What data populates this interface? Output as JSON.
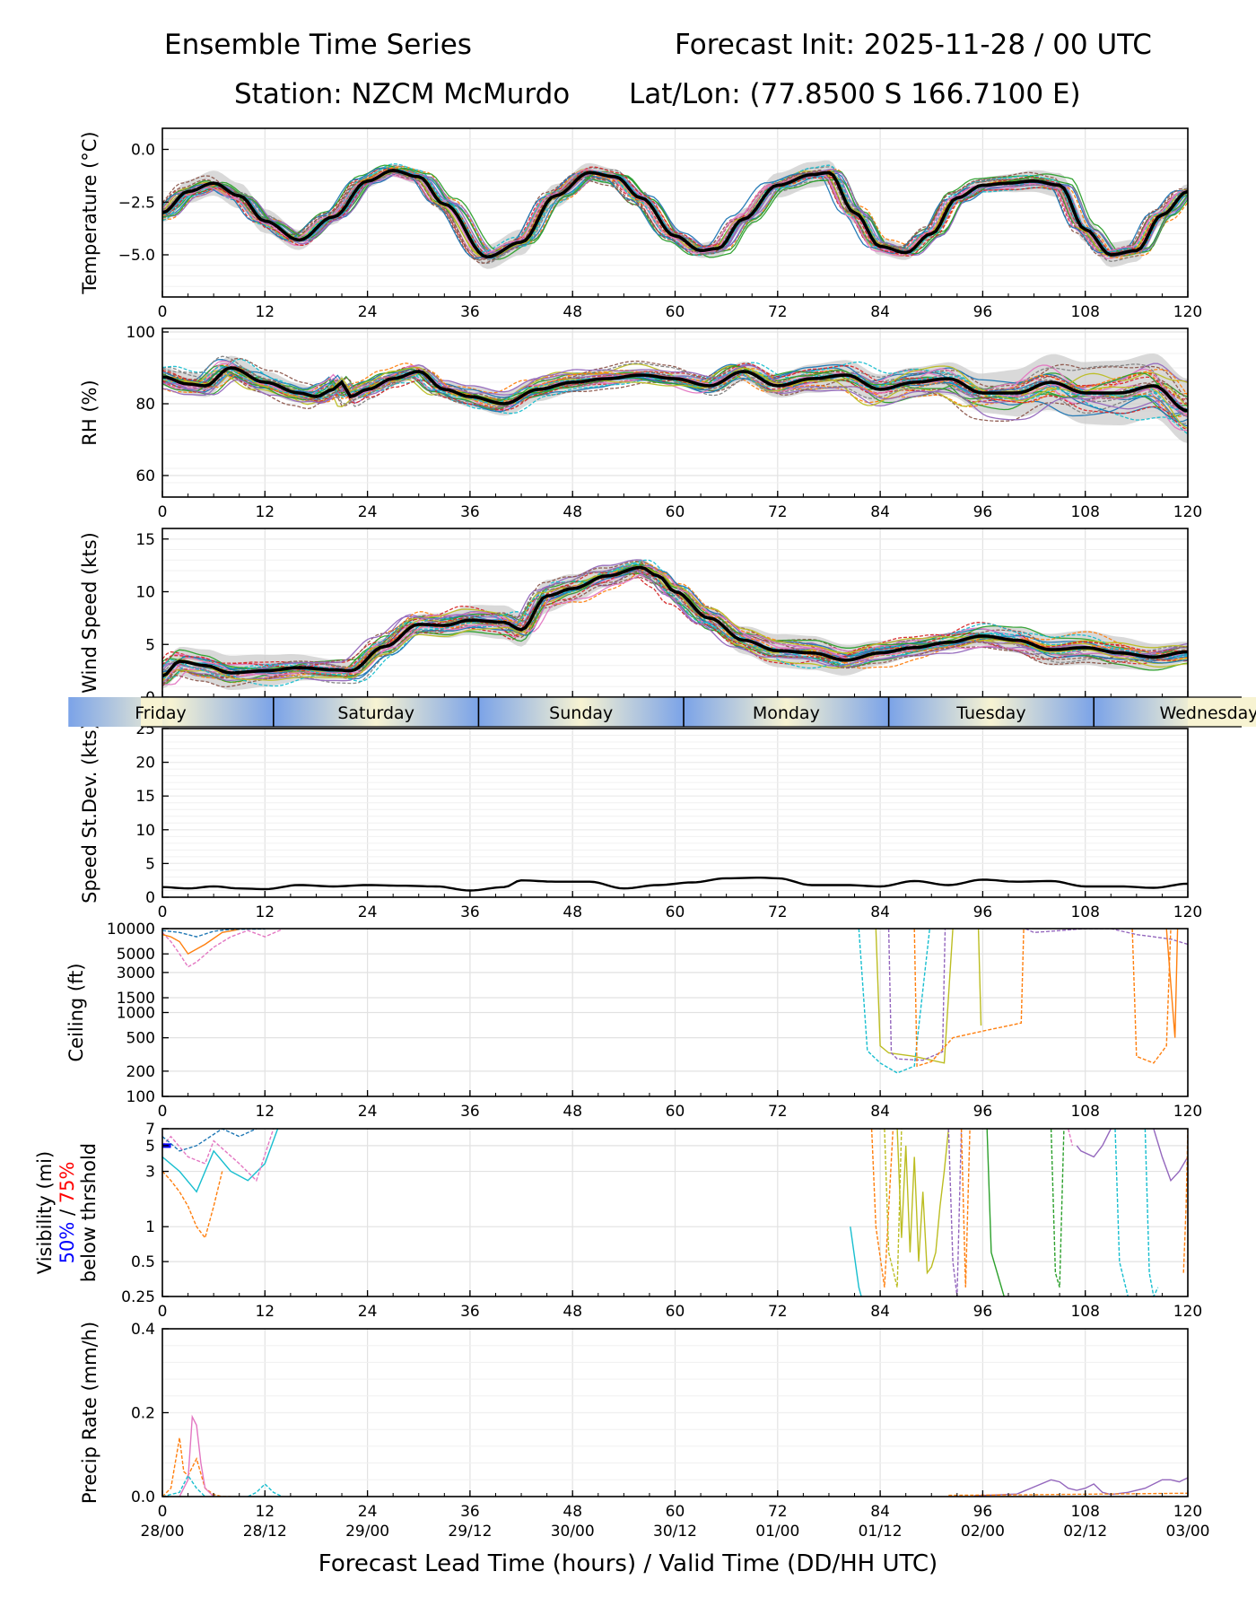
{
  "header": {
    "title_left": "Ensemble Time Series",
    "title_right": "Forecast Init: 2025-11-28 / 00 UTC",
    "station": "Station: NZCM McMurdo",
    "latlon": "Lat/Lon: (77.8500 S 166.7100 E)"
  },
  "x_axis": {
    "label": "Forecast Lead Time (hours) / Valid Time (DD/HH UTC)",
    "ticks": [
      0,
      12,
      24,
      36,
      48,
      60,
      72,
      84,
      96,
      108,
      120
    ],
    "valid_time_labels": [
      "28/00",
      "28/12",
      "29/00",
      "29/12",
      "30/00",
      "30/12",
      "01/00",
      "01/12",
      "02/00",
      "02/12",
      "03/00"
    ],
    "range": [
      0,
      120
    ]
  },
  "day_bar": {
    "days": [
      "Friday",
      "Saturday",
      "Sunday",
      "Monday",
      "Tuesday",
      "Wednesday"
    ],
    "colors": [
      "#f7f3d2",
      "#7ba3e8"
    ]
  },
  "legend": {
    "vis_50": "50%",
    "vis_slash": " / ",
    "vis_75": "75%",
    "vis_below": "below thrshold",
    "color_50": "#0000ff",
    "color_75": "#ff0000"
  },
  "colors": {
    "mean": "#000000",
    "spread": "#cccccc",
    "members": [
      "#1f77b4",
      "#ff7f0e",
      "#2ca02c",
      "#d62728",
      "#9467bd",
      "#8c564b",
      "#e377c2",
      "#7f7f7f",
      "#bcbd22",
      "#17becf"
    ]
  },
  "chart_data": [
    {
      "id": "temp",
      "type": "line",
      "ylabel": "Temperature (°C)",
      "ylim": [
        -7,
        1
      ],
      "yticks": [
        0.0,
        -2.5,
        -5.0
      ],
      "ytick_labels": [
        "0.0",
        "−2.5",
        "−5.0"
      ],
      "mean": {
        "x": [
          0,
          3,
          6,
          9,
          12,
          16,
          20,
          24,
          27,
          30,
          33,
          38,
          42,
          46,
          50,
          53,
          56,
          60,
          63,
          65,
          68,
          72,
          76,
          78,
          81,
          84,
          87,
          90,
          93,
          96,
          99,
          102,
          105,
          108,
          111,
          114,
          117,
          120
        ],
        "y": [
          -3.0,
          -2.0,
          -1.6,
          -2.2,
          -3.4,
          -4.3,
          -3.2,
          -1.5,
          -1.0,
          -1.3,
          -2.6,
          -5.1,
          -4.4,
          -2.2,
          -1.1,
          -1.3,
          -2.3,
          -4.1,
          -4.8,
          -4.7,
          -3.3,
          -1.7,
          -1.2,
          -1.1,
          -3.0,
          -4.6,
          -4.9,
          -4.0,
          -2.3,
          -1.7,
          -1.6,
          -1.5,
          -1.7,
          -3.8,
          -5.0,
          -4.8,
          -3.1,
          -2.0
        ]
      },
      "spread": 0.45,
      "member_count": 30,
      "member_noise": 0.55
    },
    {
      "id": "rh",
      "type": "line",
      "ylabel": "RH (%)",
      "ylim": [
        54,
        101
      ],
      "yticks": [
        100,
        80,
        60
      ],
      "ytick_labels": [
        "100",
        "80",
        "60"
      ],
      "mean": {
        "x": [
          0,
          3,
          5,
          8,
          12,
          16,
          18,
          20,
          21,
          22,
          24,
          27,
          30,
          33,
          36,
          40,
          44,
          48,
          52,
          56,
          60,
          64,
          68,
          72,
          76,
          80,
          84,
          88,
          92,
          96,
          100,
          104,
          108,
          112,
          116,
          120
        ],
        "y": [
          87.5,
          85.5,
          85,
          90,
          86,
          83,
          82,
          84,
          86,
          82,
          84,
          87,
          89,
          84,
          82,
          80,
          84,
          86,
          87,
          88,
          87,
          85,
          89,
          85,
          87,
          88,
          84,
          86,
          87,
          83,
          83,
          86,
          83,
          83,
          85,
          78
        ]
      },
      "spread": 2.5,
      "spread_grow": 7,
      "member_count": 30,
      "member_noise": 5,
      "member_noise_grow": 8
    },
    {
      "id": "wind",
      "type": "line",
      "ylabel": "Wind Speed (kts)",
      "ylim": [
        0,
        16
      ],
      "yticks": [
        15,
        10,
        5,
        0
      ],
      "ytick_labels": [
        "15",
        "10",
        "5",
        "0"
      ],
      "mean": {
        "x": [
          0,
          2,
          5,
          8,
          12,
          16,
          20,
          22,
          26,
          30,
          33,
          36,
          40,
          42,
          45,
          48,
          52,
          56,
          58,
          60,
          64,
          68,
          72,
          76,
          80,
          84,
          88,
          92,
          96,
          100,
          104,
          108,
          112,
          116,
          120
        ],
        "y": [
          2.0,
          3.4,
          3.0,
          2.3,
          2.5,
          2.8,
          2.6,
          2.5,
          4.8,
          6.9,
          6.8,
          7.3,
          7.1,
          6.4,
          9.6,
          10.3,
          11.5,
          12.3,
          11.5,
          10.0,
          7.5,
          5.4,
          4.4,
          4.2,
          3.5,
          4.2,
          4.7,
          5.2,
          5.8,
          5.4,
          4.5,
          4.7,
          4.2,
          3.8,
          4.3
        ]
      },
      "spread": 1.2,
      "member_count": 30,
      "member_noise": 1.9
    },
    {
      "id": "sd",
      "type": "line",
      "ylabel": "Speed St.Dev. (kts)",
      "ylim": [
        0,
        25
      ],
      "yticks": [
        25,
        20,
        15,
        10,
        5,
        0
      ],
      "ytick_labels": [
        "25",
        "20",
        "15",
        "10",
        "5",
        "0"
      ],
      "mean": {
        "x": [
          0,
          3,
          6,
          9,
          12,
          16,
          20,
          24,
          28,
          32,
          36,
          40,
          42,
          46,
          50,
          54,
          58,
          62,
          66,
          70,
          72,
          76,
          80,
          84,
          88,
          92,
          96,
          100,
          104,
          108,
          112,
          116,
          120
        ],
        "y": [
          1.5,
          1.3,
          1.6,
          1.3,
          1.2,
          1.8,
          1.6,
          1.8,
          1.7,
          1.6,
          1.0,
          1.5,
          2.5,
          2.3,
          2.3,
          1.3,
          1.8,
          2.2,
          2.8,
          2.9,
          2.8,
          1.8,
          1.8,
          1.6,
          2.4,
          1.8,
          2.6,
          2.3,
          2.4,
          1.6,
          1.6,
          1.4,
          2.0
        ]
      },
      "spread": 0,
      "member_count": 0
    },
    {
      "id": "ceil",
      "type": "line",
      "ylabel": "Ceiling (ft)",
      "scale": "log",
      "ylim": [
        100,
        10000
      ],
      "yticks": [
        10000,
        5000,
        3000,
        1500,
        1000,
        500,
        200,
        100
      ],
      "ytick_labels": [
        "10000",
        "5000",
        "3000",
        "1500",
        "1000",
        "500",
        "200",
        "100"
      ],
      "events": [
        {
          "x": [
            0,
            1,
            2,
            3,
            4,
            6,
            8,
            10,
            12,
            14
          ],
          "y": [
            9000,
            7000,
            5000,
            3500,
            4000,
            6000,
            8000,
            9500,
            8000,
            9800
          ],
          "c": 6
        },
        {
          "x": [
            0,
            1,
            2,
            3,
            5,
            7,
            9
          ],
          "y": [
            8500,
            8000,
            7000,
            5000,
            6500,
            9000,
            9800
          ],
          "c": 1
        },
        {
          "x": [
            0,
            2,
            4,
            6,
            8,
            12
          ],
          "y": [
            9500,
            9000,
            8000,
            9300,
            9800,
            9900
          ],
          "c": 0
        },
        {
          "x": [
            81.5,
            82.5,
            84,
            86,
            88,
            89.8
          ],
          "y": [
            10000,
            350,
            250,
            190,
            230,
            10000
          ],
          "c": 9
        },
        {
          "x": [
            83.5,
            84,
            85,
            88,
            91.5,
            92.5
          ],
          "y": [
            10000,
            400,
            330,
            300,
            250,
            10000
          ],
          "c": 8
        },
        {
          "x": [
            85,
            85.3,
            86,
            89,
            91.3,
            91.6
          ],
          "y": [
            10000,
            330,
            280,
            270,
            340,
            10000
          ],
          "c": 4
        },
        {
          "x": [
            88,
            88.3,
            90,
            92.5,
            96,
            100.5,
            100.8
          ],
          "y": [
            10000,
            230,
            260,
            500,
            600,
            750,
            10000
          ],
          "c": 1
        },
        {
          "x": [
            95.5,
            95.8
          ],
          "y": [
            10000,
            700
          ],
          "c": 8
        },
        {
          "x": [
            101,
            102,
            108,
            111,
            114,
            116,
            118,
            120
          ],
          "y": [
            10000,
            9000,
            10000,
            10000,
            8500,
            8000,
            7500,
            6500
          ],
          "c": 4
        },
        {
          "x": [
            113.5,
            114,
            116,
            117.5,
            118
          ],
          "y": [
            10000,
            300,
            250,
            400,
            10000
          ],
          "c": 1
        },
        {
          "x": [
            117.5,
            118.5,
            118.8
          ],
          "y": [
            10000,
            500,
            10000
          ],
          "c": 1
        }
      ]
    },
    {
      "id": "vis",
      "type": "line",
      "ylabel": "Visibility (mi)",
      "scale": "log",
      "ylim": [
        0.25,
        7
      ],
      "yticks": [
        7,
        5,
        3,
        1,
        0.5,
        0.25
      ],
      "ytick_labels": [
        "7",
        "5",
        "3",
        "1",
        "0.5",
        "0.25"
      ],
      "events": [
        {
          "x": [
            0,
            1,
            2,
            3,
            4,
            5,
            6,
            7
          ],
          "y": [
            3.0,
            2.5,
            2.0,
            1.5,
            1.0,
            0.8,
            1.5,
            3.0
          ],
          "c": 1
        },
        {
          "x": [
            0,
            2,
            4,
            6,
            8,
            10,
            12,
            13.5
          ],
          "y": [
            4.0,
            3.0,
            2.0,
            4.5,
            3.0,
            2.5,
            3.5,
            7.0
          ],
          "c": 9
        },
        {
          "x": [
            0,
            1,
            3,
            5,
            6,
            9,
            11,
            13
          ],
          "y": [
            5.0,
            6.0,
            4.0,
            3.5,
            5.5,
            3.5,
            2.5,
            7.0
          ],
          "c": 6
        },
        {
          "x": [
            0,
            2,
            4,
            7,
            9,
            11
          ],
          "y": [
            6.0,
            4.5,
            5.0,
            7.0,
            6.0,
            7.0
          ],
          "c": 0
        },
        {
          "x": [
            80.5,
            81.5,
            81.8
          ],
          "y": [
            1.0,
            0.3,
            0.25
          ],
          "c": 9
        },
        {
          "x": [
            83,
            83.5,
            84.5,
            85.5
          ],
          "y": [
            7.0,
            1.0,
            0.3,
            7.0
          ],
          "c": 1
        },
        {
          "x": [
            84.5,
            85,
            86,
            86.5
          ],
          "y": [
            7.0,
            0.6,
            0.3,
            7.0
          ],
          "c": 8
        },
        {
          "x": [
            86,
            86.5,
            87,
            87.5,
            88,
            88.5,
            89,
            89.5,
            90,
            90.5,
            91,
            91.5,
            92
          ],
          "y": [
            7.0,
            0.8,
            5.0,
            0.6,
            4.0,
            0.5,
            2.0,
            0.4,
            0.45,
            0.6,
            1.5,
            3.0,
            7.0
          ],
          "c": 8
        },
        {
          "x": [
            92,
            92.5,
            93,
            93.5
          ],
          "y": [
            7.0,
            0.5,
            0.25,
            7.0
          ],
          "c": 4
        },
        {
          "x": [
            93.5,
            94,
            94.5
          ],
          "y": [
            7.0,
            0.3,
            7.0
          ],
          "c": 1
        },
        {
          "x": [
            96.5,
            97,
            98.5
          ],
          "y": [
            7.0,
            0.6,
            0.25
          ],
          "c": 2
        },
        {
          "x": [
            104,
            104.5,
            105,
            105.5
          ],
          "y": [
            7.0,
            0.4,
            0.3,
            7.0
          ],
          "c": 2
        },
        {
          "x": [
            106,
            106.5
          ],
          "y": [
            7.0,
            5.0
          ],
          "c": 6
        },
        {
          "x": [
            107,
            107.5,
            109,
            110,
            111
          ],
          "y": [
            5.0,
            4.5,
            4.0,
            5.0,
            7.0
          ],
          "c": 4
        },
        {
          "x": [
            111.5,
            112,
            113
          ],
          "y": [
            7.0,
            0.5,
            0.25
          ],
          "c": 9
        },
        {
          "x": [
            115,
            115.5,
            116,
            116.5
          ],
          "y": [
            7.0,
            0.4,
            0.25,
            0.3
          ],
          "c": 9
        },
        {
          "x": [
            116,
            117,
            118,
            119,
            120
          ],
          "y": [
            7.0,
            4.0,
            2.5,
            3.0,
            4.0
          ],
          "c": 4
        },
        {
          "x": [
            119.5,
            119.8,
            120
          ],
          "y": [
            0.4,
            1.5,
            7.0
          ],
          "c": 1
        }
      ],
      "exceed50": {
        "x": [
          0,
          1
        ],
        "y": [
          5,
          5
        ]
      }
    },
    {
      "id": "precip",
      "type": "line",
      "ylabel": "Precip Rate (mm/h)",
      "ylim": [
        0,
        0.4
      ],
      "yticks": [
        0.4,
        0.2,
        0.0
      ],
      "ytick_labels": [
        "0.4",
        "0.2",
        "0.0"
      ],
      "events": [
        {
          "x": [
            0,
            1,
            2,
            2.5,
            3,
            4,
            5,
            6,
            7,
            8
          ],
          "y": [
            0,
            0.02,
            0.14,
            0.06,
            0.05,
            0.09,
            0.02,
            0.005,
            0.0,
            0.0
          ],
          "c": 1
        },
        {
          "x": [
            2,
            3,
            3.5,
            4,
            4.5,
            5,
            6
          ],
          "y": [
            0,
            0.04,
            0.19,
            0.17,
            0.08,
            0.02,
            0.0
          ],
          "c": 6
        },
        {
          "x": [
            0,
            2,
            3,
            4,
            5
          ],
          "y": [
            0,
            0.01,
            0.05,
            0.02,
            0.0
          ],
          "c": 9
        },
        {
          "x": [
            10,
            11,
            12,
            13,
            14
          ],
          "y": [
            0,
            0.01,
            0.03,
            0.01,
            0.0
          ],
          "c": 9
        },
        {
          "x": [
            95,
            100,
            104,
            105,
            106,
            107,
            108,
            109,
            110,
            111,
            113,
            115,
            116,
            117,
            118,
            119,
            120
          ],
          "y": [
            0.002,
            0.006,
            0.04,
            0.035,
            0.02,
            0.015,
            0.02,
            0.03,
            0.01,
            0.005,
            0.01,
            0.02,
            0.03,
            0.04,
            0.04,
            0.035,
            0.045
          ],
          "c": 4
        },
        {
          "x": [
            92,
            100,
            110,
            120
          ],
          "y": [
            0.003,
            0.004,
            0.006,
            0.008
          ],
          "c": 1
        }
      ]
    }
  ]
}
